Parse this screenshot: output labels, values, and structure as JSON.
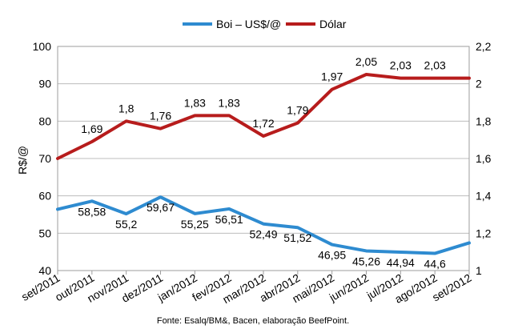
{
  "chart_data": {
    "type": "line",
    "categories": [
      "set/2011",
      "out/2011",
      "nov/2011",
      "dez/2011",
      "jan/2012",
      "fev/2012",
      "mar/2012",
      "abr/2012",
      "mai/2012",
      "jun/2012",
      "jul/2012",
      "ago/2012",
      "set/2012"
    ],
    "series": [
      {
        "name": "Boi – US$/@",
        "axis": "left",
        "color": "#2e8bd0",
        "values": [
          56.4,
          58.58,
          55.2,
          59.67,
          55.25,
          56.51,
          52.49,
          51.52,
          46.95,
          45.26,
          44.94,
          44.6,
          47.4
        ],
        "labels": [
          "",
          "58,58",
          "55,2",
          "59,67",
          "55,25",
          "56,51",
          "52,49",
          "51,52",
          "46,95",
          "45,26",
          "44,94",
          "44,6",
          ""
        ]
      },
      {
        "name": "Dólar",
        "axis": "right",
        "color": "#b71c1c",
        "values": [
          1.6,
          1.69,
          1.8,
          1.76,
          1.83,
          1.83,
          1.72,
          1.79,
          1.97,
          2.05,
          2.03,
          2.03,
          2.03
        ],
        "labels": [
          "",
          "1,69",
          "1,8",
          "1,76",
          "1,83",
          "1,83",
          "1,72",
          "1,79",
          "1,97",
          "2,05",
          "2,03",
          "2,03",
          ""
        ]
      }
    ],
    "ylabel": "R$/@",
    "ylim": [
      40,
      100
    ],
    "yticks": [
      "40",
      "50",
      "60",
      "70",
      "80",
      "90",
      "100"
    ],
    "y2lim": [
      1,
      2.2
    ],
    "y2ticks": [
      "1",
      "1,2",
      "1,4",
      "1,6",
      "1,8",
      "2",
      "2,2"
    ],
    "grid": true,
    "legend_position": "top"
  },
  "source_note": "Fonte: Esalq/BM&, Bacen, elaboração BeefPoint."
}
